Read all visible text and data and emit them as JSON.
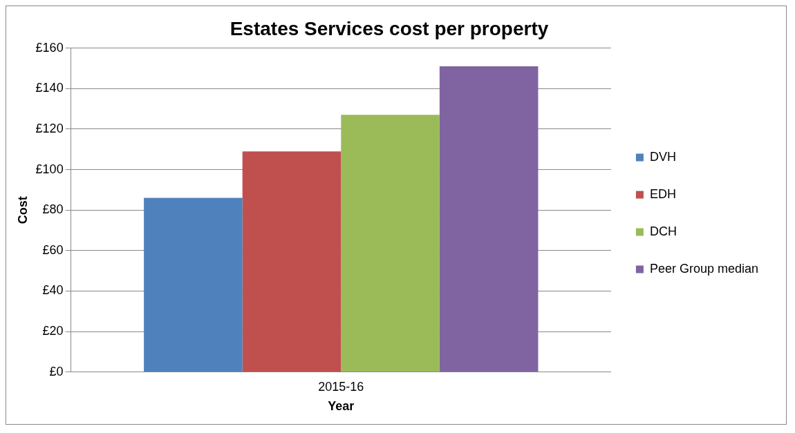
{
  "chart_data": {
    "type": "bar",
    "title": "Estates Services cost per property",
    "xlabel": "Year",
    "ylabel": "Cost",
    "categories": [
      "2015-16"
    ],
    "series": [
      {
        "name": "DVH",
        "color": "#4f81bd",
        "values": [
          86
        ]
      },
      {
        "name": "EDH",
        "color": "#c0504d",
        "values": [
          109
        ]
      },
      {
        "name": "DCH",
        "color": "#9bbb59",
        "values": [
          127
        ]
      },
      {
        "name": "Peer Group median",
        "color": "#8064a2",
        "values": [
          151
        ]
      }
    ],
    "ylim": [
      0,
      160
    ],
    "yticks": [
      {
        "value": 0,
        "label": "£0"
      },
      {
        "value": 20,
        "label": "£20"
      },
      {
        "value": 40,
        "label": "£40"
      },
      {
        "value": 60,
        "label": "£60"
      },
      {
        "value": 80,
        "label": "£80"
      },
      {
        "value": 100,
        "label": "£100"
      },
      {
        "value": 120,
        "label": "£120"
      },
      {
        "value": 140,
        "label": "£140"
      },
      {
        "value": 160,
        "label": "£160"
      }
    ],
    "grid": "y",
    "legend": "right"
  }
}
